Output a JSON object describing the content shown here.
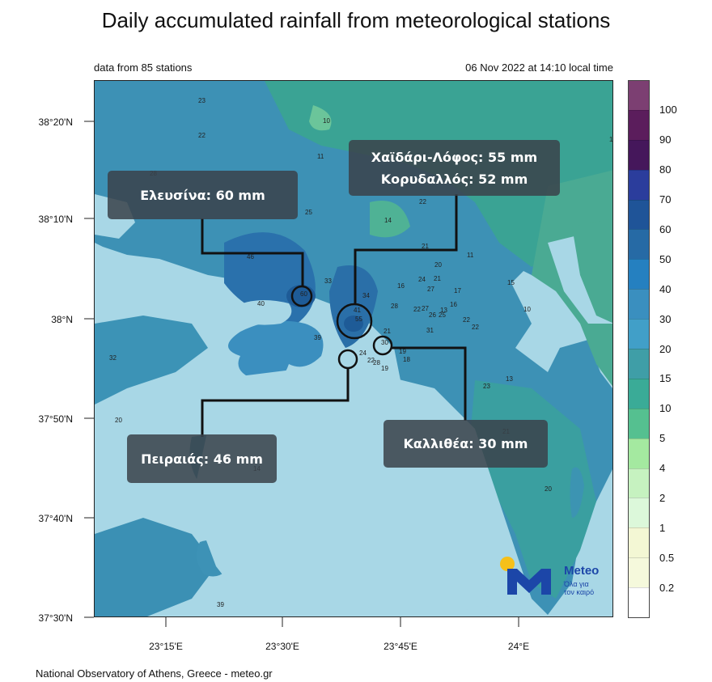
{
  "title": "Daily accumulated rainfall from meteorological stations",
  "info_left": "data from 85 stations",
  "info_right": "06 Nov 2022 at 14:10 local time",
  "footer": "National Observatory of Athens, Greece - meteo.gr",
  "lat_labels": [
    "38°20'N",
    "38°10'N",
    "38°N",
    "37°50'N",
    "37°40'N",
    "37°30'N"
  ],
  "lon_labels": [
    "23°15'E",
    "23°30'E",
    "23°45'E",
    "24°E"
  ],
  "colorbar": {
    "labels": [
      "100",
      "90",
      "80",
      "70",
      "60",
      "50",
      "40",
      "30",
      "20",
      "15",
      "10",
      "5",
      "4",
      "2",
      "1",
      "0.5",
      "0.2"
    ],
    "colors": [
      "#7c3f72",
      "#5b1d5c",
      "#45175b",
      "#2b3d9c",
      "#1f5498",
      "#266aa5",
      "#2580c0",
      "#3a8fbf",
      "#419fc8",
      "#3f9ea7",
      "#3aab97",
      "#55c090",
      "#a4e9a0",
      "#c6f2c0",
      "#dcf8da",
      "#f3f7d4",
      "#f5f9dc",
      "#ffffff"
    ]
  },
  "callouts": {
    "elefsina": "Ελευσίνα: 60 mm",
    "chaidari": "Χαϊδάρι-Λόφος: 55 mm",
    "korydallos": "Κορυδαλλός: 52 mm",
    "peiraias": "Πειραιάς: 46 mm",
    "kallithea": "Καλλιθέα: 30 mm"
  },
  "logo": {
    "brand": "Meteo",
    "line1": "Όλα για",
    "line2": "τον καιρό"
  },
  "station_values": [
    "23",
    "22",
    "10",
    "11",
    "28",
    "18",
    "22",
    "25",
    "14",
    "21",
    "11",
    "46",
    "20",
    "15",
    "10",
    "33",
    "24",
    "16",
    "21",
    "27",
    "17",
    "40",
    "34",
    "28",
    "22",
    "27",
    "13",
    "16",
    "26",
    "25",
    "22",
    "41",
    "55",
    "31",
    "21",
    "60",
    "22",
    "32",
    "39",
    "30",
    "19",
    "18",
    "28",
    "19",
    "24",
    "22",
    "23",
    "13",
    "20",
    "21",
    "14",
    "20",
    "39"
  ]
}
